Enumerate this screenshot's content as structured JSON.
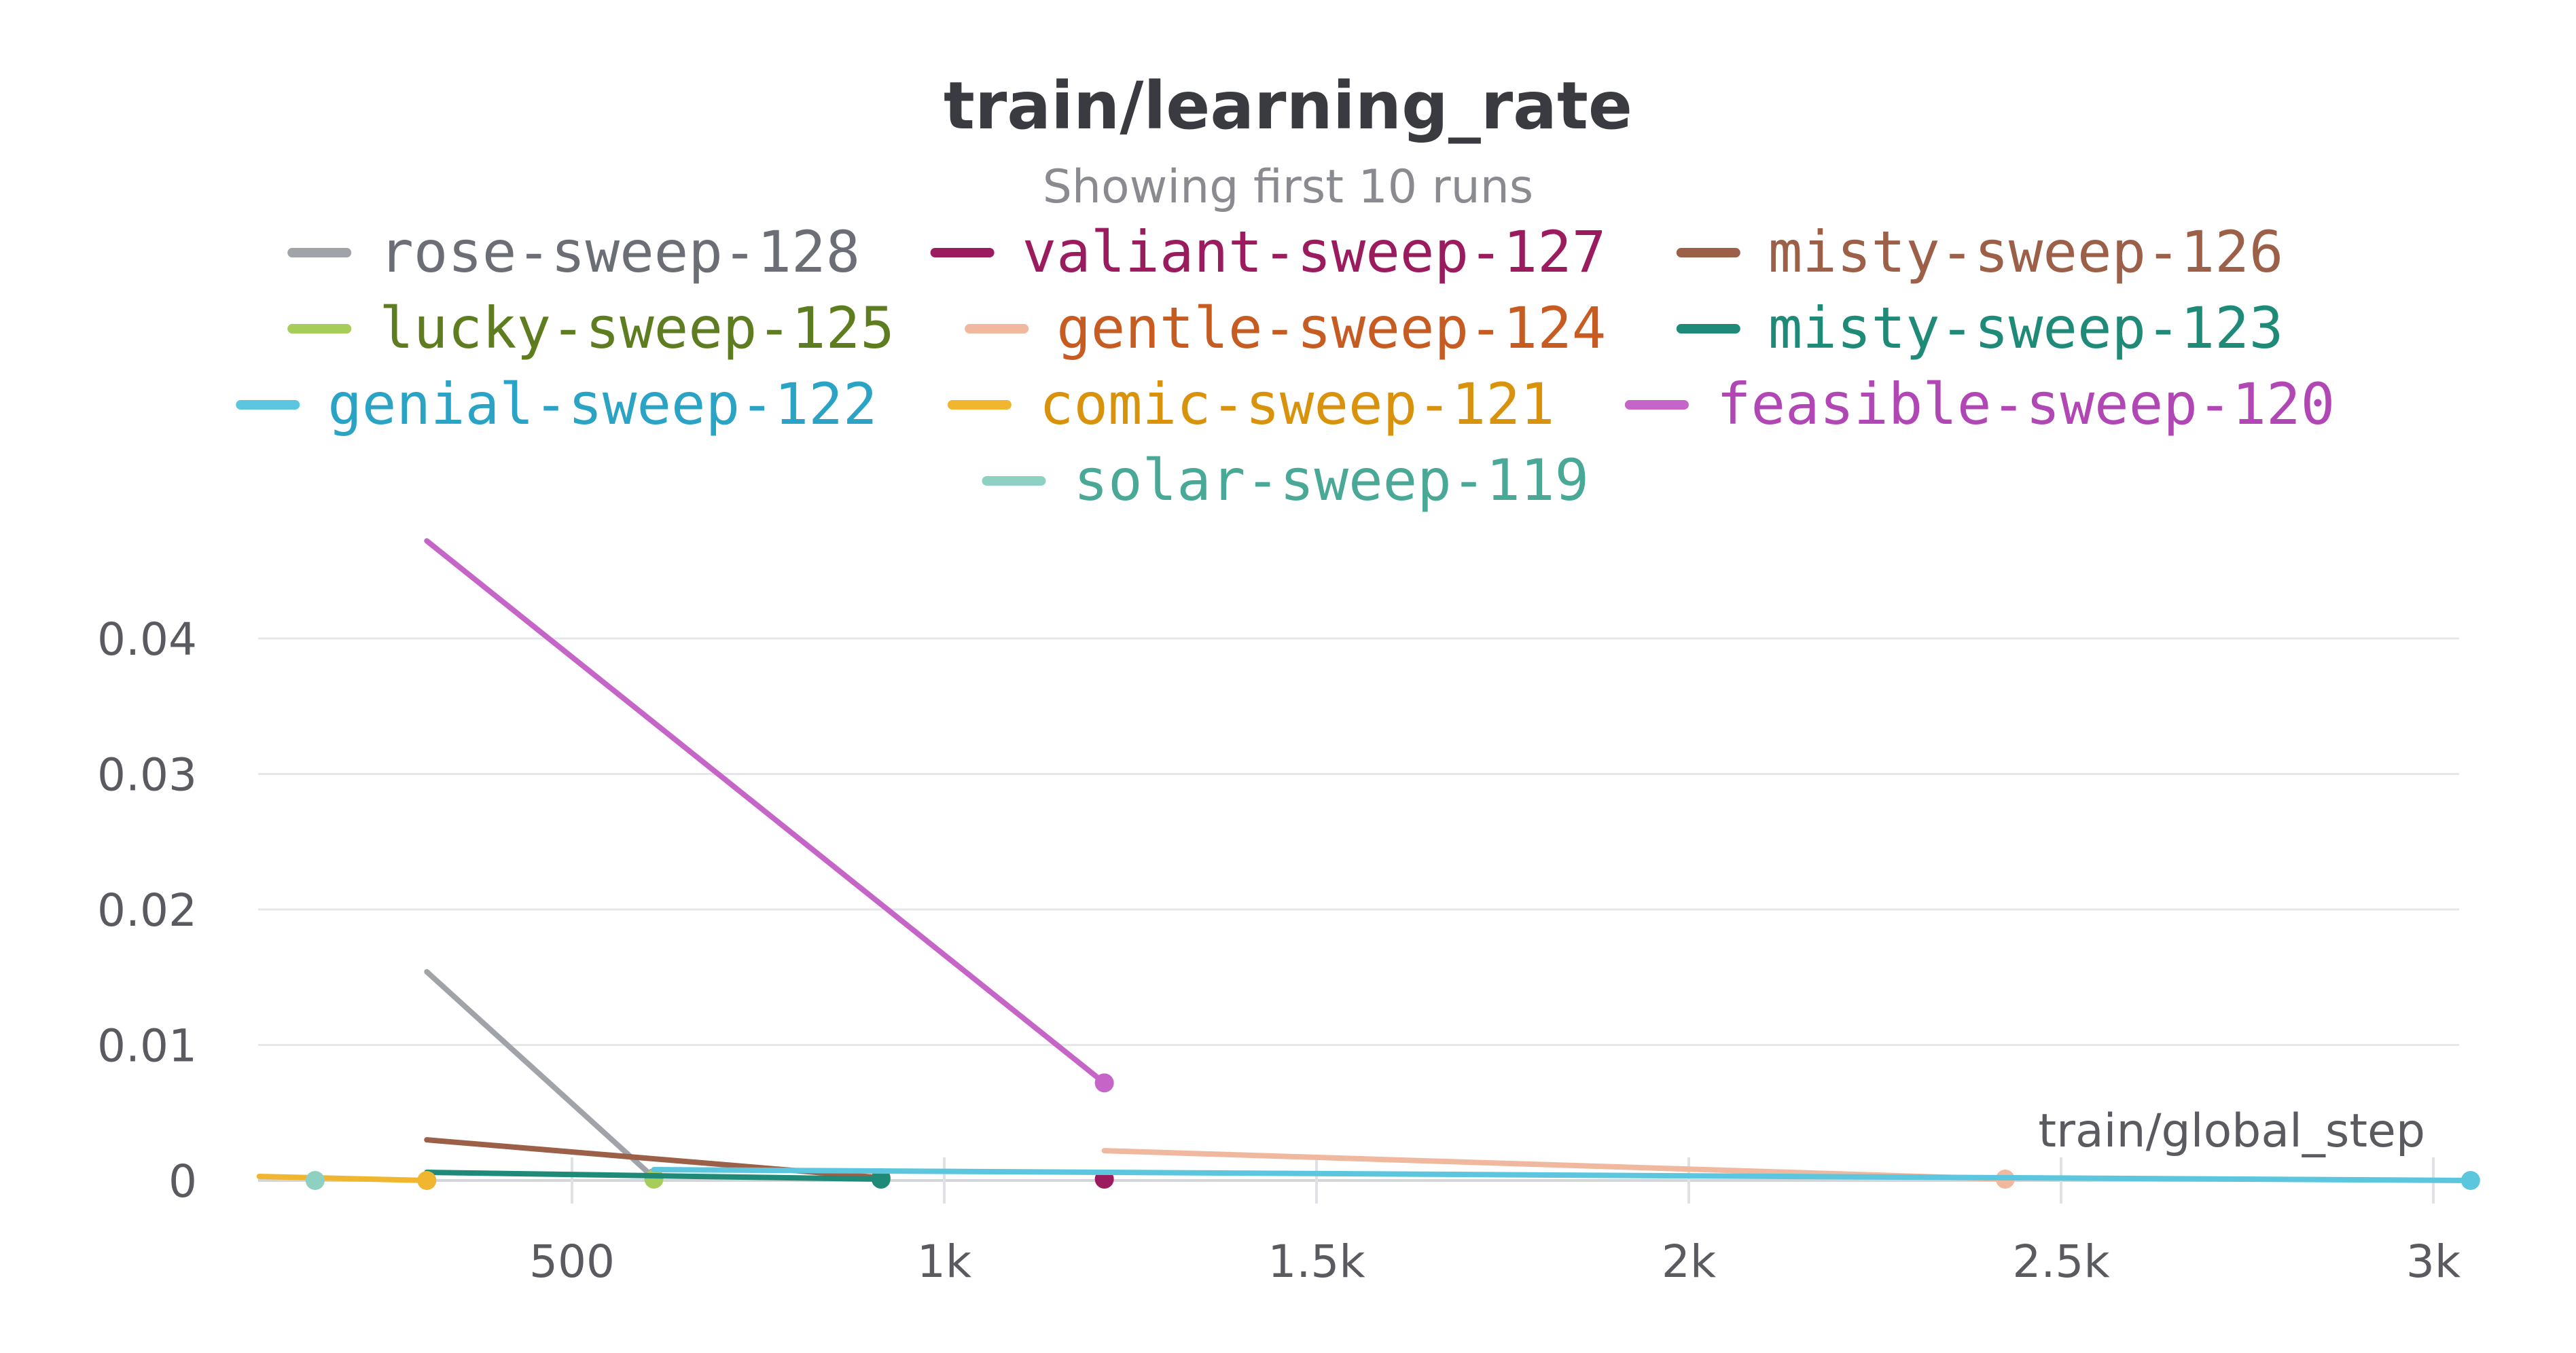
{
  "chart_data": {
    "type": "line",
    "title": "train/learning_rate",
    "subtitle": "Showing first 10 runs",
    "xlabel": "train/global_step",
    "ylabel": "",
    "xlim": [
      80,
      3050
    ],
    "ylim": [
      0,
      0.047
    ],
    "x_ticks": [
      500,
      1000,
      1500,
      2000,
      2500,
      3000
    ],
    "x_tick_labels": [
      "500",
      "1k",
      "1.5k",
      "2k",
      "2.5k",
      "3k"
    ],
    "y_ticks": [
      0,
      0.01,
      0.02,
      0.03,
      0.04
    ],
    "y_tick_labels": [
      "0",
      "0.01",
      "0.02",
      "0.03",
      "0.04"
    ],
    "grid": true,
    "legend_position": "top",
    "series": [
      {
        "name": "rose-sweep-128",
        "color": "#a0a4a8",
        "label_color": "#6b6f75",
        "x": [
          305,
          610
        ],
        "y": [
          0.0154,
          0.0002
        ]
      },
      {
        "name": "valiant-sweep-127",
        "color": "#9b1c5e",
        "label_color": "#9b1c5e",
        "x": [
          1215
        ],
        "y": [
          0.0001
        ]
      },
      {
        "name": "misty-sweep-126",
        "color": "#9c5f48",
        "label_color": "#9c5f48",
        "x": [
          305,
          915
        ],
        "y": [
          0.003,
          0.0002
        ]
      },
      {
        "name": "lucky-sweep-125",
        "color": "#a6cc5a",
        "label_color": "#5e7d20",
        "x": [
          610
        ],
        "y": [
          0.0001
        ]
      },
      {
        "name": "gentle-sweep-124",
        "color": "#f0b89e",
        "label_color": "#c65c22",
        "x": [
          1215,
          2425
        ],
        "y": [
          0.0022,
          0.0001
        ]
      },
      {
        "name": "misty-sweep-123",
        "color": "#1f8a78",
        "label_color": "#1f8a78",
        "x": [
          305,
          915
        ],
        "y": [
          0.0006,
          0.0001
        ]
      },
      {
        "name": "genial-sweep-122",
        "color": "#5cc6de",
        "label_color": "#2aa3c4",
        "x": [
          610,
          3050
        ],
        "y": [
          0.0008,
          0.0
        ]
      },
      {
        "name": "comic-sweep-121",
        "color": "#f0b630",
        "label_color": "#d8920c",
        "x": [
          80,
          305
        ],
        "y": [
          0.0003,
          0.0
        ]
      },
      {
        "name": "feasible-sweep-120",
        "color": "#c565c8",
        "label_color": "#b047b5",
        "x": [
          305,
          1215
        ],
        "y": [
          0.0472,
          0.0072
        ]
      },
      {
        "name": "solar-sweep-119",
        "color": "#8ed0c2",
        "label_color": "#4aa896",
        "x": [
          155
        ],
        "y": [
          0.0
        ]
      }
    ]
  }
}
